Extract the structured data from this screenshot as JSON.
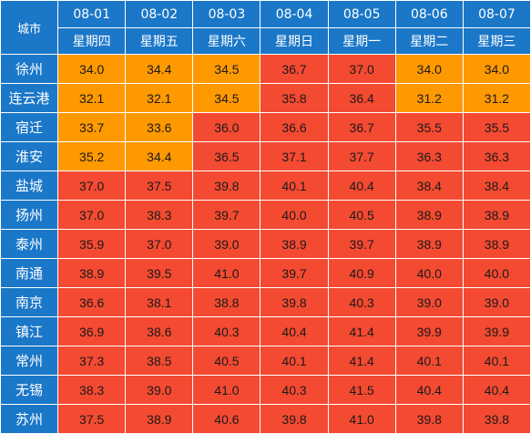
{
  "header": {
    "city_label": "城市",
    "dates": [
      "08-01",
      "08-02",
      "08-03",
      "08-04",
      "08-05",
      "08-06",
      "08-07"
    ],
    "weekdays": [
      "星期四",
      "星期五",
      "星期六",
      "星期日",
      "星期一",
      "星期二",
      "星期三"
    ]
  },
  "colors": {
    "header_blue": "#1b77c8",
    "orange": "#ff9900",
    "red": "#f44a31"
  },
  "rows": [
    {
      "city": "徐州",
      "values": [
        "34.0",
        "34.4",
        "34.5",
        "36.7",
        "37.0",
        "34.0",
        "34.0"
      ],
      "levels": [
        "orange",
        "orange",
        "orange",
        "red",
        "red",
        "orange",
        "orange"
      ]
    },
    {
      "city": "连云港",
      "values": [
        "32.1",
        "32.1",
        "34.5",
        "35.8",
        "36.4",
        "31.2",
        "31.2"
      ],
      "levels": [
        "orange",
        "orange",
        "orange",
        "red",
        "red",
        "orange",
        "orange"
      ]
    },
    {
      "city": "宿迁",
      "values": [
        "33.7",
        "33.6",
        "36.0",
        "36.6",
        "36.7",
        "35.5",
        "35.5"
      ],
      "levels": [
        "orange",
        "orange",
        "red",
        "red",
        "red",
        "red",
        "red"
      ]
    },
    {
      "city": "淮安",
      "values": [
        "35.2",
        "34.4",
        "36.5",
        "37.1",
        "37.7",
        "36.3",
        "36.3"
      ],
      "levels": [
        "orange",
        "orange",
        "red",
        "red",
        "red",
        "red",
        "red"
      ]
    },
    {
      "city": "盐城",
      "values": [
        "37.0",
        "37.5",
        "39.8",
        "40.1",
        "40.4",
        "38.4",
        "38.4"
      ],
      "levels": [
        "red",
        "red",
        "red",
        "red",
        "red",
        "red",
        "red"
      ]
    },
    {
      "city": "扬州",
      "values": [
        "37.0",
        "38.3",
        "39.7",
        "40.0",
        "40.5",
        "38.9",
        "38.9"
      ],
      "levels": [
        "red",
        "red",
        "red",
        "red",
        "red",
        "red",
        "red"
      ]
    },
    {
      "city": "泰州",
      "values": [
        "35.9",
        "37.0",
        "39.0",
        "38.9",
        "39.7",
        "38.9",
        "38.9"
      ],
      "levels": [
        "red",
        "red",
        "red",
        "red",
        "red",
        "red",
        "red"
      ]
    },
    {
      "city": "南通",
      "values": [
        "38.9",
        "39.5",
        "41.0",
        "39.7",
        "40.9",
        "40.0",
        "40.0"
      ],
      "levels": [
        "red",
        "red",
        "red",
        "red",
        "red",
        "red",
        "red"
      ]
    },
    {
      "city": "南京",
      "values": [
        "36.6",
        "38.1",
        "38.8",
        "39.8",
        "40.3",
        "39.0",
        "39.0"
      ],
      "levels": [
        "red",
        "red",
        "red",
        "red",
        "red",
        "red",
        "red"
      ]
    },
    {
      "city": "镇江",
      "values": [
        "36.9",
        "38.6",
        "40.3",
        "40.4",
        "41.4",
        "39.9",
        "39.9"
      ],
      "levels": [
        "red",
        "red",
        "red",
        "red",
        "red",
        "red",
        "red"
      ]
    },
    {
      "city": "常州",
      "values": [
        "37.3",
        "38.5",
        "40.5",
        "40.1",
        "41.4",
        "40.1",
        "40.1"
      ],
      "levels": [
        "red",
        "red",
        "red",
        "red",
        "red",
        "red",
        "red"
      ]
    },
    {
      "city": "无锡",
      "values": [
        "38.3",
        "39.0",
        "41.0",
        "40.3",
        "41.5",
        "40.4",
        "40.4"
      ],
      "levels": [
        "red",
        "red",
        "red",
        "red",
        "red",
        "red",
        "red"
      ]
    },
    {
      "city": "苏州",
      "values": [
        "37.5",
        "38.9",
        "40.6",
        "39.8",
        "41.0",
        "39.8",
        "39.8"
      ],
      "levels": [
        "red",
        "red",
        "red",
        "red",
        "red",
        "red",
        "red"
      ]
    }
  ]
}
